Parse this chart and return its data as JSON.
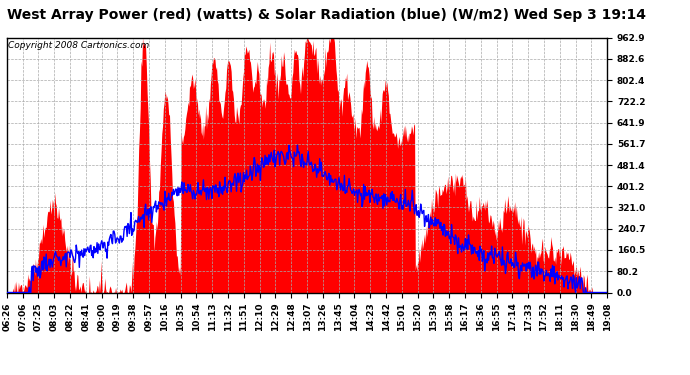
{
  "title": "West Array Power (red) (watts) & Solar Radiation (blue) (W/m2) Wed Sep 3 19:14",
  "copyright": "Copyright 2008 Cartronics.com",
  "yticks": [
    0.0,
    80.2,
    160.5,
    240.7,
    321.0,
    401.2,
    481.4,
    561.7,
    641.9,
    722.2,
    802.4,
    882.6,
    962.9
  ],
  "ymax": 962.9,
  "ymin": 0.0,
  "xtick_labels": [
    "06:26",
    "07:06",
    "07:25",
    "08:03",
    "08:22",
    "08:41",
    "09:00",
    "09:19",
    "09:38",
    "09:57",
    "10:16",
    "10:35",
    "10:54",
    "11:13",
    "11:32",
    "11:51",
    "12:10",
    "12:29",
    "12:48",
    "13:07",
    "13:26",
    "13:45",
    "14:04",
    "14:23",
    "14:42",
    "15:01",
    "15:20",
    "15:39",
    "15:58",
    "16:17",
    "16:36",
    "16:55",
    "17:14",
    "17:33",
    "17:52",
    "18:11",
    "18:30",
    "18:49",
    "19:08"
  ],
  "background_color": "#ffffff",
  "plot_bg_color": "#ffffff",
  "grid_color": "#aaaaaa",
  "red_color": "#ff0000",
  "blue_color": "#0000ff",
  "title_fontsize": 10,
  "tick_fontsize": 6.5,
  "copyright_fontsize": 6.5
}
